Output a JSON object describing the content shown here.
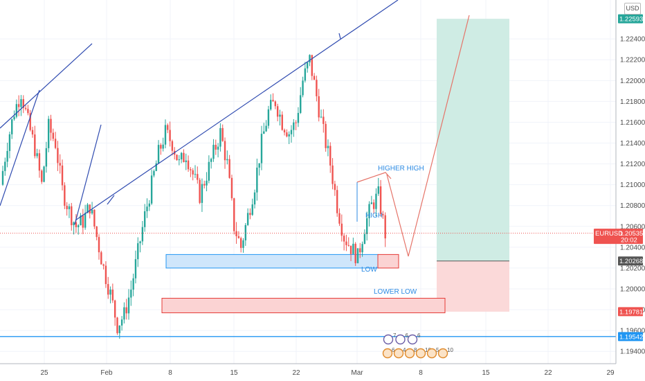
{
  "currency": "USD",
  "colors": {
    "up": "#26a69a",
    "down": "#ef5350",
    "trendline": "#2f4bb0",
    "demand_zone_fill": "#cfe6fb",
    "demand_zone_stroke": "#2196f3",
    "supply_zone_fill": "#fbd3d3",
    "supply_zone_stroke": "#e53935",
    "target_fill": "#cfece4",
    "stop_fill": "#fbd9d9",
    "projection": "#e57368",
    "annotation": "#2b8ae3",
    "current_price": "#ef5350",
    "position_line": "#555555",
    "support_line": "#2196f3"
  },
  "labels": {
    "higher_high": "HIGHER HIGH",
    "high": "HIGH",
    "low": "LOW",
    "lower_low": "LOWER LOW"
  },
  "price_tags": {
    "target": "1.22593",
    "current_symbol": "EURUSD",
    "current_price": "1.20535",
    "countdown": "20:02",
    "entry": "1.20268",
    "stop": "1.19781",
    "support": "1.19542"
  },
  "events": {
    "row1": [
      "7",
      "6",
      "6"
    ],
    "row2": [
      "6",
      "4",
      "8",
      "10",
      "5",
      "10"
    ]
  },
  "chart_data": {
    "type": "candlestick",
    "x_tick_labels": [
      "25",
      "Feb",
      "8",
      "15",
      "22",
      "Mar",
      "8",
      "15",
      "22",
      "29"
    ],
    "y_tick_labels": [
      "1.19400",
      "1.19600",
      "1.19800",
      "1.20000",
      "1.20200",
      "1.20400",
      "1.20600",
      "1.20800",
      "1.21000",
      "1.21200",
      "1.21400",
      "1.21600",
      "1.21800",
      "1.22000",
      "1.22200",
      "1.22400"
    ],
    "ylim": [
      1.1928,
      1.2277
    ],
    "grid": true,
    "current_price": 1.20535,
    "key_levels": {
      "target": 1.22593,
      "entry": 1.20268,
      "stop": 1.19781,
      "support": 1.19542
    },
    "demand_zone": {
      "top": 1.2033,
      "bottom": 1.202
    },
    "supply_zone": {
      "top": 1.1991,
      "bottom": 1.1977
    },
    "swing_points": [
      {
        "label": "HIGHER HIGH",
        "price": 1.2108
      },
      {
        "label": "HIGH",
        "price": 1.2101
      },
      {
        "label": "LOW",
        "price": 1.2029
      },
      {
        "label": "LOWER LOW",
        "price": 1.2003
      }
    ],
    "price_path": [
      1.21,
      1.214,
      1.217,
      1.2189,
      1.216,
      1.2135,
      1.21,
      1.2155,
      1.214,
      1.2095,
      1.2075,
      1.206,
      1.2065,
      1.208,
      1.205,
      1.202,
      1.1995,
      1.1965,
      1.1975,
      1.2,
      1.2035,
      1.207,
      1.21,
      1.213,
      1.215,
      1.214,
      1.212,
      1.213,
      1.211,
      1.209,
      1.211,
      1.213,
      1.215,
      1.212,
      1.206,
      1.204,
      1.207,
      1.21,
      1.214,
      1.217,
      1.218,
      1.216,
      1.215,
      1.216,
      1.22,
      1.222,
      1.2185,
      1.215,
      1.212,
      1.208,
      1.205,
      1.204,
      1.203,
      1.206,
      1.208,
      1.209,
      1.2053
    ]
  }
}
